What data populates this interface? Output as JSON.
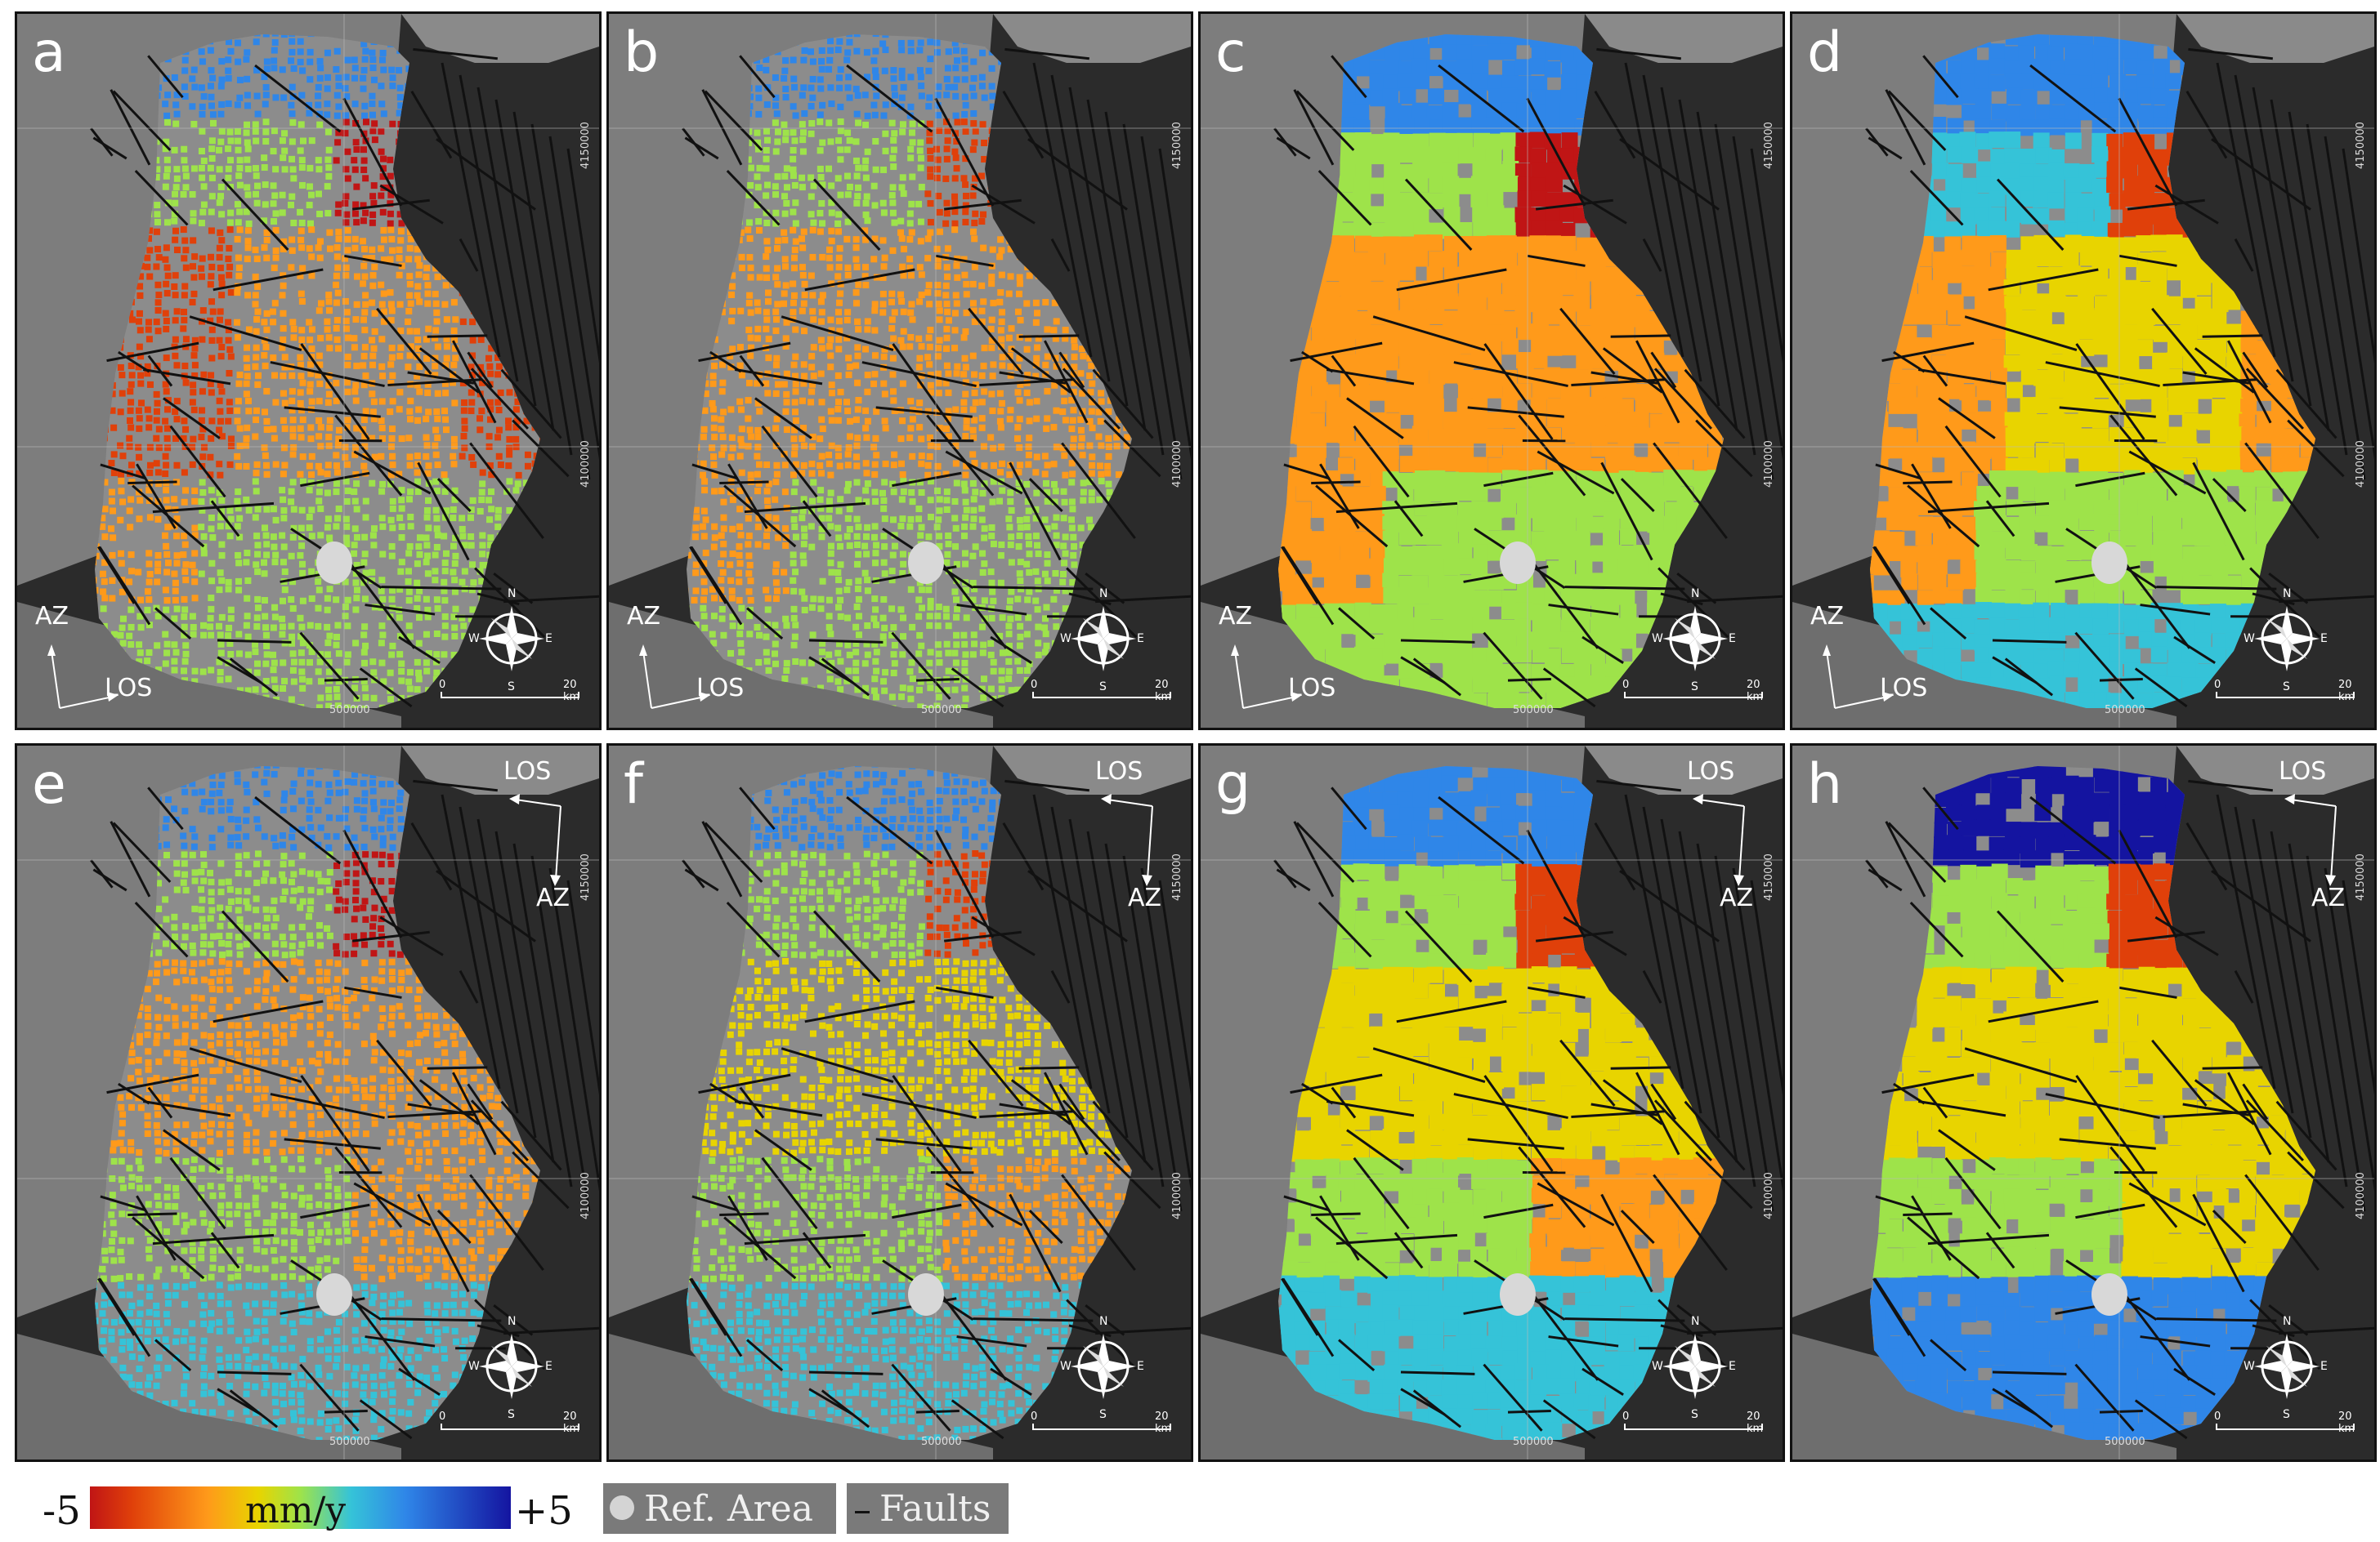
{
  "panels": [
    {
      "letter": "a",
      "los_label": "LOS",
      "az_label": "AZ",
      "orbit": "asc",
      "style": "speckle",
      "variant": 0
    },
    {
      "letter": "b",
      "los_label": "LOS",
      "az_label": "AZ",
      "orbit": "asc",
      "style": "speckle",
      "variant": 1
    },
    {
      "letter": "c",
      "los_label": "LOS",
      "az_label": "AZ",
      "orbit": "asc",
      "style": "smooth",
      "variant": 0
    },
    {
      "letter": "d",
      "los_label": "LOS",
      "az_label": "AZ",
      "orbit": "asc",
      "style": "smooth",
      "variant": 1
    },
    {
      "letter": "e",
      "los_label": "LOS",
      "az_label": "AZ",
      "orbit": "desc",
      "style": "speckle",
      "variant": 0
    },
    {
      "letter": "f",
      "los_label": "LOS",
      "az_label": "AZ",
      "orbit": "desc",
      "style": "speckle",
      "variant": 1
    },
    {
      "letter": "g",
      "los_label": "LOS",
      "az_label": "AZ",
      "orbit": "desc",
      "style": "smooth",
      "variant": 0
    },
    {
      "letter": "h",
      "los_label": "LOS",
      "az_label": "AZ",
      "orbit": "desc",
      "style": "smooth",
      "variant": 1
    }
  ],
  "grid_labels": {
    "northing_top": "4150000",
    "northing_mid": "4100000",
    "easting": "500000"
  },
  "compass": {
    "n": "N",
    "s": "S",
    "e": "E",
    "w": "W"
  },
  "scalebar": {
    "zero": "0",
    "max": "20 km"
  },
  "legend": {
    "min_label": "-5",
    "max_label": "+5",
    "unit": "mm/y",
    "ref_area": "Ref. Area",
    "faults": "Faults",
    "colormap": [
      "#c01515",
      "#e0400a",
      "#ff9a1a",
      "#e8d400",
      "#9ee34a",
      "#35c3d8",
      "#2f86e8",
      "#1414a0"
    ]
  }
}
